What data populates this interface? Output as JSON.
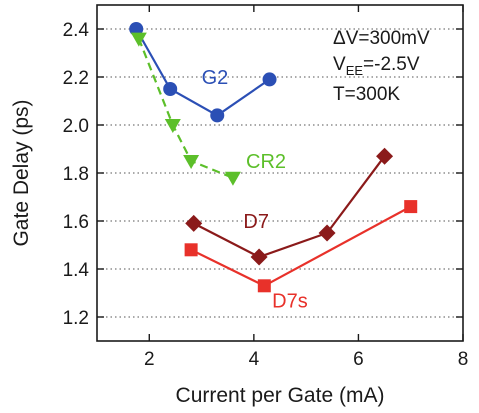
{
  "chart_data": {
    "type": "line",
    "title": "",
    "xlabel": "Current per Gate (mA)",
    "ylabel": "Gate Delay (ps)",
    "xlim": [
      1,
      8
    ],
    "ylim": [
      1.1,
      2.5
    ],
    "xticks": [
      2,
      4,
      6,
      8
    ],
    "yticks": [
      1.2,
      1.4,
      1.6,
      1.8,
      2.0,
      2.2,
      2.4
    ],
    "xtick_labels": [
      "2",
      "4",
      "6",
      "8"
    ],
    "ytick_labels": [
      "1.2",
      "1.4",
      "1.6",
      "1.8",
      "2.0",
      "2.2",
      "2.4"
    ],
    "grid": "horizontal-dotted",
    "annotations": [
      {
        "prefix": "ΔV=300mV",
        "sub": "",
        "suffix": ""
      },
      {
        "prefix": "V",
        "sub": "EE",
        "suffix": "=-2.5V"
      },
      {
        "prefix": "T=300K",
        "sub": "",
        "suffix": ""
      }
    ],
    "series": [
      {
        "name": "G2",
        "color": "#2b4fb5",
        "marker": "circle",
        "dash": false,
        "x": [
          1.75,
          2.4,
          3.3,
          4.3
        ],
        "y": [
          2.4,
          2.15,
          2.04,
          2.19
        ]
      },
      {
        "name": "CR2",
        "color": "#5cbf2a",
        "marker": "triangle-down",
        "dash": true,
        "x": [
          1.8,
          2.45,
          2.8,
          3.6
        ],
        "y": [
          2.36,
          2.0,
          1.85,
          1.78
        ]
      },
      {
        "name": "D7",
        "color": "#8b1a1a",
        "marker": "diamond",
        "dash": false,
        "x": [
          2.85,
          4.1,
          5.4,
          6.5
        ],
        "y": [
          1.59,
          1.45,
          1.55,
          1.87
        ]
      },
      {
        "name": "D7s",
        "color": "#e8312a",
        "marker": "square",
        "dash": false,
        "x": [
          2.8,
          4.2,
          7.0
        ],
        "y": [
          1.48,
          1.33,
          1.66
        ]
      }
    ]
  }
}
